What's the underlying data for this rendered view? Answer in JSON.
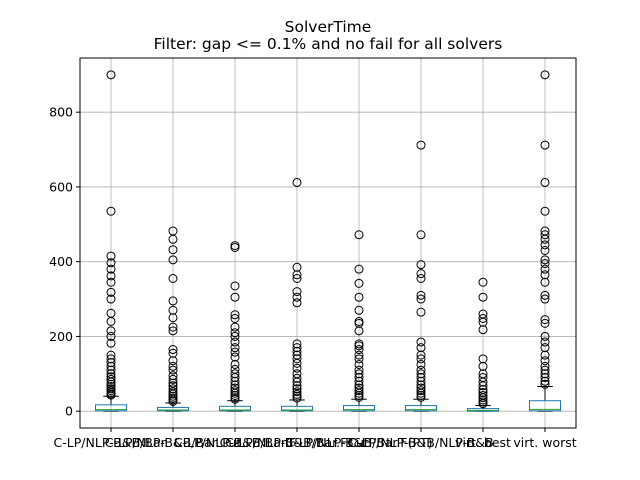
{
  "chart_data": {
    "type": "box",
    "title": "SolverTime",
    "subtitle": "Filter: gap <= 0.1% and no fail for all solvers",
    "xlabel": "",
    "ylabel": "",
    "ylim": [
      -45,
      945
    ],
    "yticks": [
      0,
      200,
      400,
      600,
      800
    ],
    "grid": true,
    "box_color": "#1f77b4",
    "median_color": "#2ca02c",
    "categories": [
      "C-LP/NLP-B&B/Bar.",
      "C-LP/NLP-B&B/Bar.Cut",
      "C-LP/NLP-B&B/Bar.F",
      "C-LP/NLP-B&B/Bar.FCut",
      "C-LP/NLP-B&B/Bar.F(PT)",
      "C-LP/NLP-B&B/NLP-B&B",
      "virt. best",
      "virt. worst"
    ],
    "series": [
      {
        "q1": 1,
        "median": 4,
        "q3": 17,
        "whisker_low": 0,
        "whisker_high": 40,
        "outliers": [
          900,
          535,
          415,
          397,
          380,
          362,
          345,
          318,
          300,
          262,
          240,
          215,
          200,
          182,
          150,
          140,
          130,
          120,
          110,
          100,
          92,
          85,
          78,
          72,
          66,
          60,
          55,
          50,
          46,
          43
        ]
      },
      {
        "q1": 1,
        "median": 3,
        "q3": 10,
        "whisker_low": 0,
        "whisker_high": 22,
        "outliers": [
          482,
          460,
          432,
          405,
          355,
          295,
          270,
          250,
          225,
          215,
          165,
          155,
          135,
          120,
          110,
          95,
          85,
          75,
          68,
          60,
          52,
          46,
          40,
          35,
          30,
          26
        ]
      },
      {
        "q1": 1,
        "median": 3,
        "q3": 13,
        "whisker_low": 0,
        "whisker_high": 28,
        "outliers": [
          443,
          438,
          335,
          305,
          258,
          248,
          225,
          210,
          200,
          185,
          170,
          158,
          145,
          125,
          112,
          100,
          90,
          80,
          70,
          62,
          55,
          48,
          42,
          36,
          32
        ]
      },
      {
        "q1": 1,
        "median": 3,
        "q3": 13,
        "whisker_low": 0,
        "whisker_high": 30,
        "outliers": [
          612,
          385,
          365,
          355,
          320,
          305,
          290,
          180,
          170,
          160,
          150,
          140,
          128,
          115,
          100,
          88,
          78,
          68,
          60,
          52,
          45,
          40,
          35
        ]
      },
      {
        "q1": 1,
        "median": 4,
        "q3": 15,
        "whisker_low": 0,
        "whisker_high": 32,
        "outliers": [
          472,
          380,
          342,
          305,
          270,
          240,
          235,
          215,
          180,
          175,
          165,
          150,
          140,
          125,
          110,
          100,
          90,
          80,
          70,
          62,
          55,
          48,
          42,
          37
        ]
      },
      {
        "q1": 1,
        "median": 4,
        "q3": 15,
        "whisker_low": 0,
        "whisker_high": 32,
        "outliers": [
          712,
          472,
          392,
          368,
          355,
          310,
          300,
          265,
          185,
          170,
          150,
          140,
          125,
          110,
          100,
          90,
          80,
          70,
          62,
          55,
          48,
          42,
          37
        ]
      },
      {
        "q1": 0,
        "median": 2,
        "q3": 7,
        "whisker_low": 0,
        "whisker_high": 15,
        "outliers": [
          345,
          305,
          260,
          248,
          238,
          218,
          140,
          120,
          100,
          90,
          78,
          68,
          58,
          50,
          42,
          36,
          30,
          25,
          20
        ]
      },
      {
        "q1": 1,
        "median": 5,
        "q3": 28,
        "whisker_low": 0,
        "whisker_high": 66,
        "outliers": [
          900,
          712,
          612,
          535,
          482,
          472,
          460,
          445,
          430,
          405,
          395,
          380,
          365,
          345,
          310,
          300,
          245,
          235,
          200,
          185,
          170,
          150,
          135,
          120,
          110,
          100,
          90,
          80,
          72
        ]
      }
    ]
  }
}
